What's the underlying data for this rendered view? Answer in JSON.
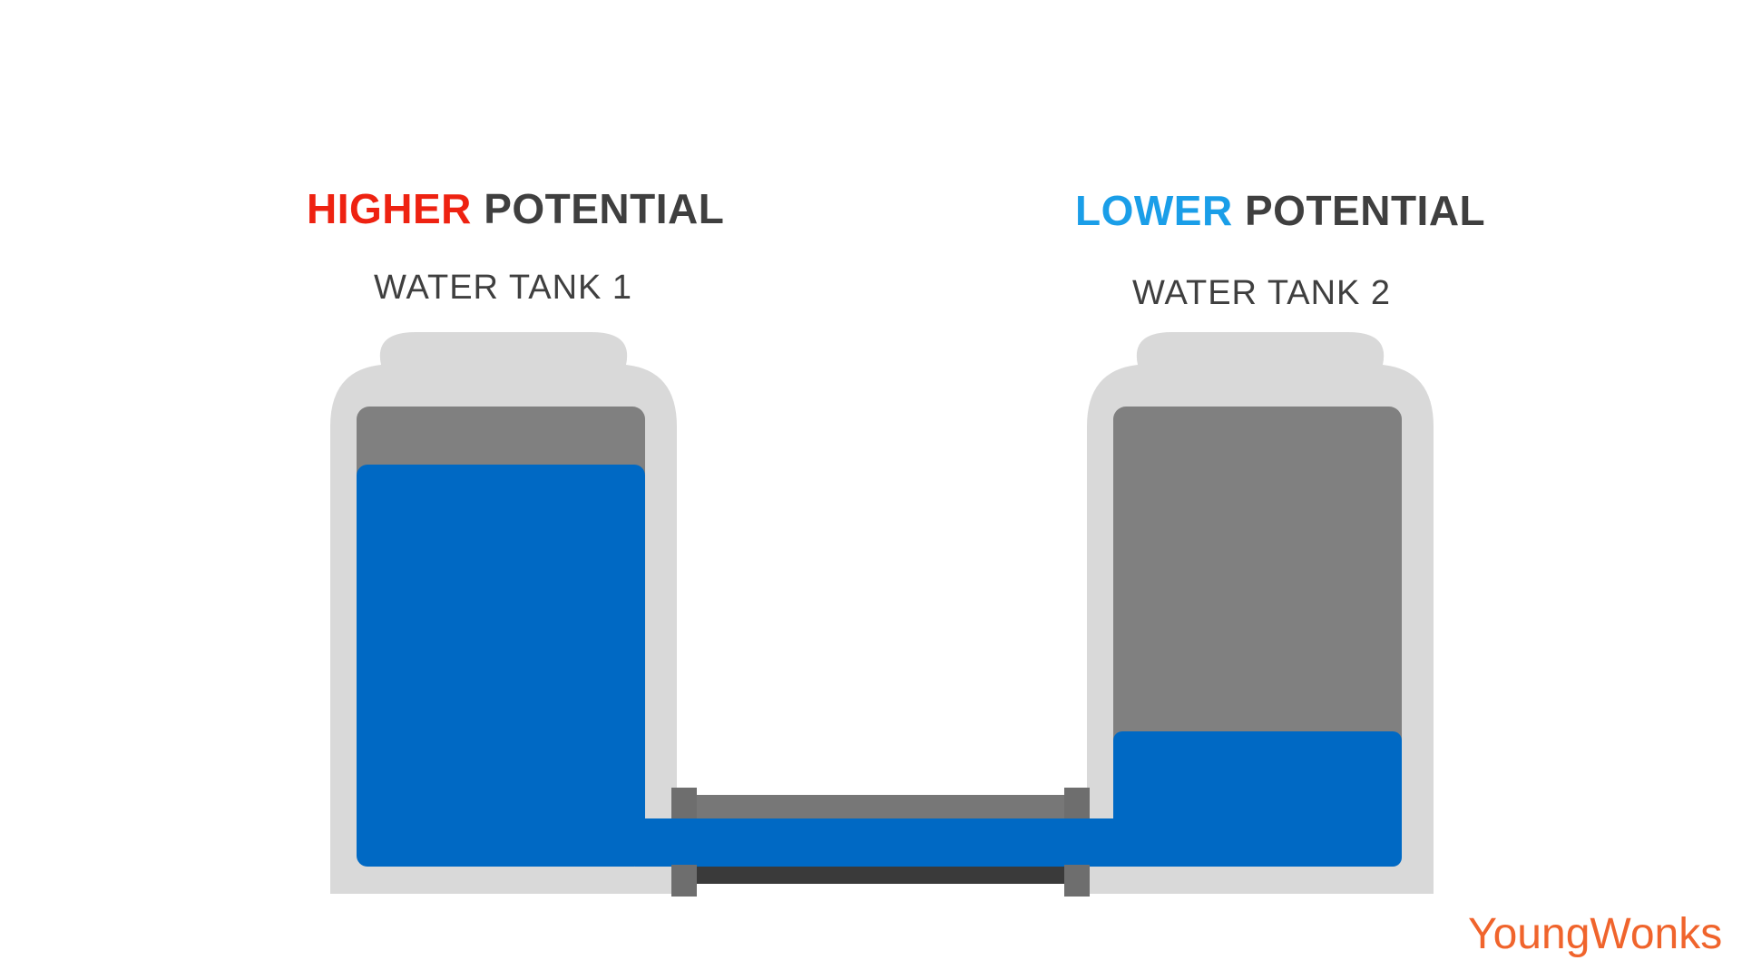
{
  "left_heading": {
    "accent": "HIGHER",
    "rest": "POTENTIAL"
  },
  "right_heading": {
    "accent": "LOWER",
    "rest": "POTENTIAL"
  },
  "tank1": {
    "label": "WATER TANK 1"
  },
  "tank2": {
    "label": "WATER TANK 2"
  },
  "brand": {
    "name": "YoungWonks"
  },
  "colors": {
    "higher_accent": "#ee2211",
    "lower_accent": "#1a9ee8",
    "water": "#0069c4",
    "tank_shell": "#d9d9d9",
    "tank_inner": "#808080",
    "brand": "#f0642c"
  }
}
